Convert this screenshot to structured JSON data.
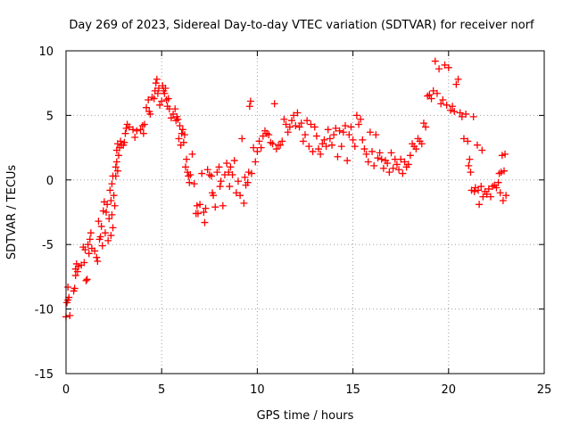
{
  "chart_data": {
    "type": "scatter",
    "title": "Day 269 of 2023, Sidereal Day-to-day VTEC variation (SDTVAR) for receiver norf",
    "xlabel": "GPS time / hours",
    "ylabel": "SDTVAR / TECUs",
    "xlim": [
      0,
      25
    ],
    "ylim": [
      -15,
      10
    ],
    "xticks": [
      0,
      5,
      10,
      15,
      20,
      25
    ],
    "yticks": [
      -15,
      -10,
      -5,
      0,
      5,
      10
    ],
    "grid": true,
    "marker": "+",
    "series": [
      {
        "name": "SDTVAR",
        "color": "#ff0000",
        "points": [
          [
            0.0,
            -10.6
          ],
          [
            0.05,
            -9.5
          ],
          [
            0.1,
            -9.3
          ],
          [
            0.1,
            -8.3
          ],
          [
            0.15,
            -9.1
          ],
          [
            0.2,
            -10.5
          ],
          [
            0.4,
            -8.6
          ],
          [
            0.45,
            -8.4
          ],
          [
            0.5,
            -7.4
          ],
          [
            0.5,
            -6.9
          ],
          [
            0.55,
            -6.5
          ],
          [
            0.6,
            -7.1
          ],
          [
            0.65,
            -6.7
          ],
          [
            0.8,
            -6.6
          ],
          [
            0.9,
            -5.2
          ],
          [
            0.95,
            -6.4
          ],
          [
            1.0,
            -5.4
          ],
          [
            1.05,
            -7.8
          ],
          [
            1.1,
            -7.7
          ],
          [
            1.15,
            -5.0
          ],
          [
            1.2,
            -5.7
          ],
          [
            1.25,
            -4.6
          ],
          [
            1.3,
            -4.1
          ],
          [
            1.35,
            -5.3
          ],
          [
            1.5,
            -5.5
          ],
          [
            1.6,
            -6.0
          ],
          [
            1.65,
            -6.3
          ],
          [
            1.7,
            -3.2
          ],
          [
            1.75,
            -4.6
          ],
          [
            1.8,
            -4.4
          ],
          [
            1.85,
            -3.6
          ],
          [
            1.9,
            -5.1
          ],
          [
            1.95,
            -2.4
          ],
          [
            2.0,
            -1.7
          ],
          [
            2.05,
            -4.1
          ],
          [
            2.1,
            -2.5
          ],
          [
            2.15,
            -1.9
          ],
          [
            2.2,
            -4.7
          ],
          [
            2.25,
            -3.0
          ],
          [
            2.3,
            -0.8
          ],
          [
            2.35,
            -1.6
          ],
          [
            2.35,
            -4.3
          ],
          [
            2.4,
            -0.3
          ],
          [
            2.4,
            -2.7
          ],
          [
            2.45,
            0.3
          ],
          [
            2.45,
            -3.7
          ],
          [
            2.5,
            -1.2
          ],
          [
            2.55,
            -2.0
          ],
          [
            2.6,
            1.0
          ],
          [
            2.6,
            0.3
          ],
          [
            2.65,
            1.4
          ],
          [
            2.65,
            2.3
          ],
          [
            2.7,
            2.8
          ],
          [
            2.7,
            0.7
          ],
          [
            2.75,
            1.9
          ],
          [
            2.8,
            2.5
          ],
          [
            2.85,
            3.0
          ],
          [
            2.9,
            2.7
          ],
          [
            3.0,
            2.7
          ],
          [
            3.05,
            2.9
          ],
          [
            3.1,
            3.6
          ],
          [
            3.15,
            4.0
          ],
          [
            3.2,
            4.3
          ],
          [
            3.3,
            4.1
          ],
          [
            3.5,
            3.9
          ],
          [
            3.6,
            3.3
          ],
          [
            3.7,
            3.8
          ],
          [
            3.9,
            3.9
          ],
          [
            4.0,
            4.2
          ],
          [
            4.05,
            3.6
          ],
          [
            4.1,
            4.3
          ],
          [
            4.2,
            5.6
          ],
          [
            4.3,
            6.2
          ],
          [
            4.35,
            5.3
          ],
          [
            4.4,
            5.1
          ],
          [
            4.5,
            6.4
          ],
          [
            4.6,
            6.3
          ],
          [
            4.65,
            6.9
          ],
          [
            4.7,
            7.5
          ],
          [
            4.75,
            7.8
          ],
          [
            4.8,
            6.7
          ],
          [
            4.85,
            7.1
          ],
          [
            4.9,
            5.8
          ],
          [
            5.0,
            6.1
          ],
          [
            5.05,
            7.3
          ],
          [
            5.1,
            6.9
          ],
          [
            5.15,
            6.7
          ],
          [
            5.2,
            7.1
          ],
          [
            5.25,
            6.2
          ],
          [
            5.3,
            5.7
          ],
          [
            5.35,
            6.3
          ],
          [
            5.4,
            5.5
          ],
          [
            5.5,
            4.8
          ],
          [
            5.6,
            5.1
          ],
          [
            5.7,
            5.5
          ],
          [
            5.75,
            4.6
          ],
          [
            5.8,
            4.9
          ],
          [
            5.85,
            4.7
          ],
          [
            5.9,
            3.2
          ],
          [
            5.95,
            4.2
          ],
          [
            6.0,
            2.7
          ],
          [
            6.05,
            3.6
          ],
          [
            6.1,
            3.9
          ],
          [
            6.15,
            2.9
          ],
          [
            6.2,
            3.5
          ],
          [
            6.25,
            1.0
          ],
          [
            6.3,
            1.6
          ],
          [
            6.35,
            0.6
          ],
          [
            6.4,
            0.3
          ],
          [
            6.45,
            -0.2
          ],
          [
            6.5,
            0.4
          ],
          [
            6.6,
            2.0
          ],
          [
            6.7,
            -0.3
          ],
          [
            6.8,
            -2.6
          ],
          [
            6.85,
            -2.0
          ],
          [
            6.9,
            -2.6
          ],
          [
            7.0,
            -1.9
          ],
          [
            7.1,
            0.5
          ],
          [
            7.2,
            -2.5
          ],
          [
            7.25,
            -3.3
          ],
          [
            7.3,
            -2.2
          ],
          [
            7.4,
            0.8
          ],
          [
            7.5,
            0.4
          ],
          [
            7.6,
            0.3
          ],
          [
            7.65,
            -1.0
          ],
          [
            7.7,
            -1.2
          ],
          [
            7.8,
            -2.1
          ],
          [
            7.9,
            0.6
          ],
          [
            8.0,
            1.0
          ],
          [
            8.05,
            -0.5
          ],
          [
            8.1,
            -0.1
          ],
          [
            8.2,
            -2.0
          ],
          [
            8.3,
            0.4
          ],
          [
            8.4,
            1.3
          ],
          [
            8.5,
            0.6
          ],
          [
            8.55,
            -0.5
          ],
          [
            8.6,
            1.0
          ],
          [
            8.7,
            0.4
          ],
          [
            8.8,
            1.5
          ],
          [
            8.9,
            -1.0
          ],
          [
            9.0,
            -0.1
          ],
          [
            9.1,
            -1.2
          ],
          [
            9.2,
            3.2
          ],
          [
            9.3,
            -1.8
          ],
          [
            9.35,
            0.2
          ],
          [
            9.4,
            -0.4
          ],
          [
            9.5,
            -0.2
          ],
          [
            9.55,
            0.6
          ],
          [
            9.6,
            5.7
          ],
          [
            9.65,
            6.1
          ],
          [
            9.7,
            0.5
          ],
          [
            9.8,
            2.5
          ],
          [
            9.9,
            1.4
          ],
          [
            10.0,
            2.2
          ],
          [
            10.1,
            3.0
          ],
          [
            10.2,
            2.5
          ],
          [
            10.3,
            3.4
          ],
          [
            10.4,
            3.8
          ],
          [
            10.5,
            3.6
          ],
          [
            10.6,
            3.5
          ],
          [
            10.7,
            2.9
          ],
          [
            10.8,
            2.8
          ],
          [
            10.9,
            5.9
          ],
          [
            11.0,
            2.4
          ],
          [
            11.1,
            2.7
          ],
          [
            11.2,
            2.7
          ],
          [
            11.3,
            3.0
          ],
          [
            11.4,
            4.7
          ],
          [
            11.5,
            4.3
          ],
          [
            11.6,
            3.7
          ],
          [
            11.7,
            4.1
          ],
          [
            11.8,
            4.6
          ],
          [
            11.9,
            5.0
          ],
          [
            12.0,
            4.2
          ],
          [
            12.1,
            5.2
          ],
          [
            12.2,
            4.1
          ],
          [
            12.3,
            4.4
          ],
          [
            12.4,
            3.0
          ],
          [
            12.5,
            3.5
          ],
          [
            12.6,
            4.6
          ],
          [
            12.7,
            2.6
          ],
          [
            12.8,
            4.3
          ],
          [
            12.9,
            2.2
          ],
          [
            13.0,
            4.1
          ],
          [
            13.1,
            3.4
          ],
          [
            13.2,
            2.4
          ],
          [
            13.3,
            2.0
          ],
          [
            13.4,
            2.8
          ],
          [
            13.5,
            3.1
          ],
          [
            13.6,
            2.6
          ],
          [
            13.7,
            3.9
          ],
          [
            13.8,
            3.2
          ],
          [
            13.9,
            2.7
          ],
          [
            14.0,
            3.5
          ],
          [
            14.1,
            4.0
          ],
          [
            14.2,
            1.8
          ],
          [
            14.3,
            3.8
          ],
          [
            14.4,
            2.6
          ],
          [
            14.5,
            3.7
          ],
          [
            14.6,
            4.2
          ],
          [
            14.7,
            1.5
          ],
          [
            14.8,
            3.5
          ],
          [
            14.9,
            4.1
          ],
          [
            15.0,
            3.1
          ],
          [
            15.1,
            2.6
          ],
          [
            15.2,
            5.0
          ],
          [
            15.3,
            4.3
          ],
          [
            15.4,
            4.7
          ],
          [
            15.5,
            3.1
          ],
          [
            15.6,
            2.4
          ],
          [
            15.7,
            2.0
          ],
          [
            15.8,
            1.4
          ],
          [
            15.9,
            3.7
          ],
          [
            16.0,
            2.2
          ],
          [
            16.1,
            1.1
          ],
          [
            16.2,
            3.5
          ],
          [
            16.3,
            1.7
          ],
          [
            16.4,
            2.1
          ],
          [
            16.5,
            1.6
          ],
          [
            16.6,
            0.9
          ],
          [
            16.7,
            1.5
          ],
          [
            16.8,
            1.3
          ],
          [
            16.9,
            0.6
          ],
          [
            17.0,
            2.1
          ],
          [
            17.1,
            0.9
          ],
          [
            17.2,
            1.6
          ],
          [
            17.3,
            1.2
          ],
          [
            17.4,
            0.8
          ],
          [
            17.5,
            1.6
          ],
          [
            17.6,
            0.5
          ],
          [
            17.7,
            1.4
          ],
          [
            17.8,
            1.0
          ],
          [
            17.9,
            1.2
          ],
          [
            18.0,
            1.9
          ],
          [
            18.1,
            2.8
          ],
          [
            18.2,
            2.6
          ],
          [
            18.3,
            2.4
          ],
          [
            18.4,
            3.2
          ],
          [
            18.5,
            3.0
          ],
          [
            18.6,
            2.8
          ],
          [
            18.7,
            4.4
          ],
          [
            18.8,
            4.1
          ],
          [
            18.9,
            6.5
          ],
          [
            19.0,
            6.6
          ],
          [
            19.1,
            6.3
          ],
          [
            19.2,
            6.9
          ],
          [
            19.3,
            9.2
          ],
          [
            19.4,
            6.7
          ],
          [
            19.5,
            8.6
          ],
          [
            19.6,
            5.9
          ],
          [
            19.7,
            6.2
          ],
          [
            19.8,
            8.9
          ],
          [
            19.9,
            5.8
          ],
          [
            20.0,
            8.7
          ],
          [
            20.1,
            5.4
          ],
          [
            20.2,
            5.7
          ],
          [
            20.3,
            5.3
          ],
          [
            20.4,
            7.4
          ],
          [
            20.5,
            7.8
          ],
          [
            20.6,
            5.2
          ],
          [
            20.7,
            4.9
          ],
          [
            20.8,
            3.2
          ],
          [
            20.9,
            5.1
          ],
          [
            21.0,
            3.0
          ],
          [
            21.05,
            1.1
          ],
          [
            21.1,
            1.6
          ],
          [
            21.15,
            0.6
          ],
          [
            21.2,
            -0.8
          ],
          [
            21.3,
            4.9
          ],
          [
            21.35,
            -0.9
          ],
          [
            21.4,
            -0.6
          ],
          [
            21.5,
            2.7
          ],
          [
            21.55,
            -0.8
          ],
          [
            21.6,
            -1.9
          ],
          [
            21.7,
            -0.5
          ],
          [
            21.75,
            2.3
          ],
          [
            21.8,
            -1.3
          ],
          [
            21.9,
            -0.9
          ],
          [
            22.0,
            -1.1
          ],
          [
            22.1,
            -0.7
          ],
          [
            22.2,
            -1.3
          ],
          [
            22.3,
            -0.5
          ],
          [
            22.4,
            -0.4
          ],
          [
            22.5,
            -0.6
          ],
          [
            22.6,
            -0.2
          ],
          [
            22.65,
            0.5
          ],
          [
            22.7,
            -1.0
          ],
          [
            22.75,
            0.6
          ],
          [
            22.8,
            1.9
          ],
          [
            22.85,
            -1.6
          ],
          [
            22.9,
            0.7
          ],
          [
            22.95,
            2.0
          ],
          [
            23.0,
            -1.2
          ]
        ]
      }
    ]
  }
}
